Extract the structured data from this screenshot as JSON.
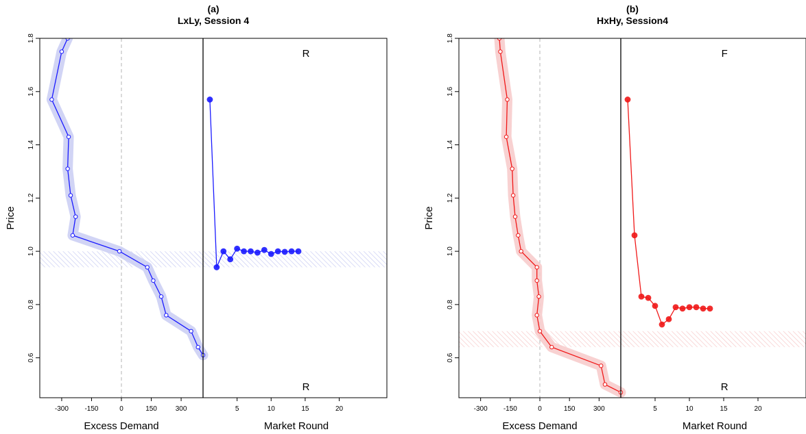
{
  "chart_data": [
    {
      "type": "line",
      "panel": "(a)",
      "title": "LxLy, Session 4",
      "ylabel": "Price",
      "ylim": [
        0.45,
        1.8
      ],
      "yticks": [
        "0.6",
        "0.8",
        "1.0",
        "1.2",
        "1.4",
        "1.6",
        "1.8"
      ],
      "color": "#1a1aff",
      "band_color": "#c9cdf3",
      "equilibrium_band": [
        0.94,
        1.0
      ],
      "left": {
        "xlabel": "Excess Demand",
        "xlim": [
          -410,
          410
        ],
        "xticks": [
          "-300",
          "-150",
          "0",
          "150",
          "300"
        ],
        "points": [
          {
            "x": -270,
            "y": 1.8
          },
          {
            "x": -300,
            "y": 1.75
          },
          {
            "x": -350,
            "y": 1.57
          },
          {
            "x": -265,
            "y": 1.43
          },
          {
            "x": -270,
            "y": 1.31
          },
          {
            "x": -255,
            "y": 1.21
          },
          {
            "x": -230,
            "y": 1.13
          },
          {
            "x": -245,
            "y": 1.06
          },
          {
            "x": -10,
            "y": 1.0
          },
          {
            "x": 130,
            "y": 0.94
          },
          {
            "x": 160,
            "y": 0.89
          },
          {
            "x": 200,
            "y": 0.83
          },
          {
            "x": 225,
            "y": 0.76
          },
          {
            "x": 350,
            "y": 0.7
          },
          {
            "x": 385,
            "y": 0.64
          },
          {
            "x": 410,
            "y": 0.61
          }
        ]
      },
      "right": {
        "xlabel": "Market Round",
        "xlim": [
          0,
          27
        ],
        "xticks": [
          "5",
          "10",
          "15",
          "20"
        ],
        "label_top": "R",
        "label_bottom": "R",
        "rounds": [
          1,
          2,
          3,
          4,
          5,
          6,
          7,
          8,
          9,
          10,
          11,
          12,
          13,
          14
        ],
        "prices": [
          1.57,
          0.94,
          1.0,
          0.97,
          1.01,
          1.0,
          1.0,
          0.995,
          1.005,
          0.99,
          1.0,
          0.998,
          1.0,
          1.0
        ]
      }
    },
    {
      "type": "line",
      "panel": "(b)",
      "title": "HxHy, Session4",
      "ylabel": "Price",
      "ylim": [
        0.45,
        1.8
      ],
      "yticks": [
        "0.6",
        "0.8",
        "1.0",
        "1.2",
        "1.4",
        "1.6",
        "1.8"
      ],
      "color": "#f01818",
      "band_color": "#f7c9c9",
      "equilibrium_band": [
        0.64,
        0.7
      ],
      "left": {
        "xlabel": "Excess Demand",
        "xlim": [
          -410,
          410
        ],
        "xticks": [
          "-300",
          "-150",
          "0",
          "150",
          "300"
        ],
        "points": [
          {
            "x": -205,
            "y": 1.8
          },
          {
            "x": -200,
            "y": 1.75
          },
          {
            "x": -165,
            "y": 1.57
          },
          {
            "x": -170,
            "y": 1.43
          },
          {
            "x": -140,
            "y": 1.31
          },
          {
            "x": -135,
            "y": 1.21
          },
          {
            "x": -125,
            "y": 1.13
          },
          {
            "x": -110,
            "y": 1.06
          },
          {
            "x": -95,
            "y": 1.0
          },
          {
            "x": -15,
            "y": 0.94
          },
          {
            "x": -15,
            "y": 0.89
          },
          {
            "x": -5,
            "y": 0.83
          },
          {
            "x": -15,
            "y": 0.76
          },
          {
            "x": 0,
            "y": 0.7
          },
          {
            "x": 60,
            "y": 0.64
          },
          {
            "x": 310,
            "y": 0.57
          },
          {
            "x": 330,
            "y": 0.5
          },
          {
            "x": 410,
            "y": 0.47
          }
        ]
      },
      "right": {
        "xlabel": "Market Round",
        "xlim": [
          0,
          27
        ],
        "xticks": [
          "5",
          "10",
          "15",
          "20"
        ],
        "label_top": "F",
        "label_bottom": "R",
        "rounds": [
          1,
          2,
          3,
          4,
          5,
          6,
          7,
          8,
          9,
          10,
          11,
          12,
          13
        ],
        "prices": [
          1.57,
          1.06,
          0.83,
          0.825,
          0.795,
          0.725,
          0.745,
          0.79,
          0.785,
          0.79,
          0.79,
          0.785,
          0.785
        ]
      }
    }
  ]
}
